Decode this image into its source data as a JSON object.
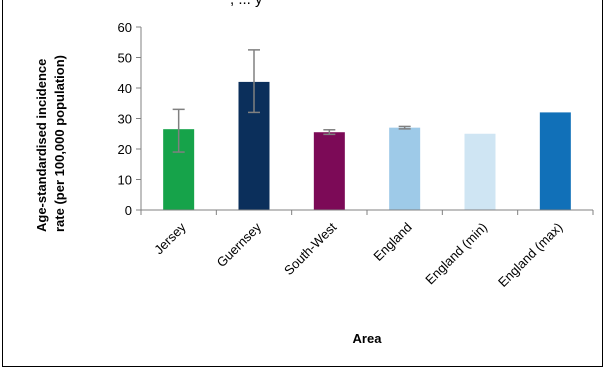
{
  "chart_data": {
    "type": "bar",
    "title": ", ... y",
    "xlabel": "Area",
    "ylabel": "Age-standardised incidence rate (per 100,000 population)",
    "ylabel_lines": [
      "Age-standardised incidence",
      "rate (per 100,000 population)"
    ],
    "ylim": [
      0,
      60
    ],
    "yticks": [
      0,
      10,
      20,
      30,
      40,
      50,
      60
    ],
    "grid": false,
    "legend": "none",
    "categories": [
      "Jersey",
      "Guernsey",
      "South-West",
      "England",
      "England (min)",
      "England (max)"
    ],
    "values": [
      26.5,
      42,
      25.5,
      27,
      25,
      32
    ],
    "error_low": [
      19,
      32,
      24.8,
      26.6,
      null,
      null
    ],
    "error_high": [
      33,
      52.5,
      26.3,
      27.4,
      null,
      null
    ],
    "colors": [
      "#16a34a",
      "#0b2f5b",
      "#7c0a57",
      "#9ecae8",
      "#cfe5f3",
      "#1170b8"
    ]
  }
}
